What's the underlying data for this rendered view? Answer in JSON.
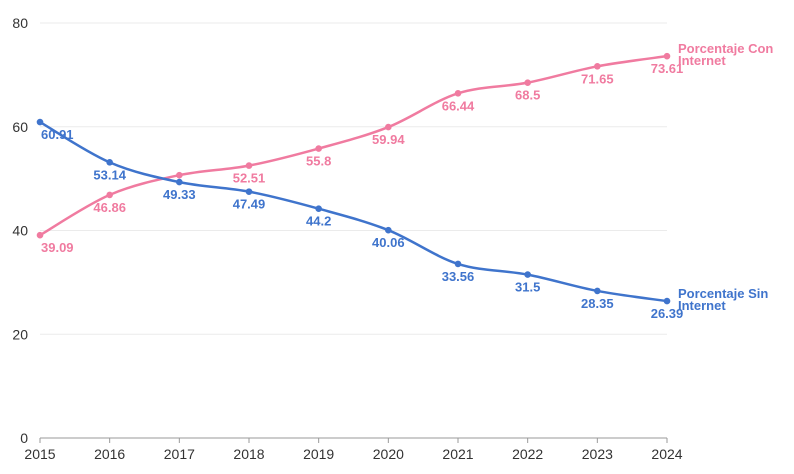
{
  "chart_data": {
    "type": "line",
    "x": [
      2015,
      2016,
      2017,
      2018,
      2019,
      2020,
      2021,
      2022,
      2023,
      2024
    ],
    "ylim": [
      0,
      80
    ],
    "yticks": [
      0,
      20,
      40,
      60,
      80
    ],
    "grid": true,
    "legend": "end-of-line labels",
    "series": [
      {
        "name": "Porcentaje Con Internet",
        "name_lines": [
          "Porcentaje Con",
          "Internet"
        ],
        "color": "#f07ba0",
        "values": [
          39.09,
          46.86,
          50.67,
          52.51,
          55.8,
          59.94,
          66.44,
          68.5,
          71.65,
          73.61
        ],
        "labels": [
          "39.09",
          "46.86",
          "",
          "52.51",
          "55.8",
          "59.94",
          "66.44",
          "68.5",
          "71.65",
          "73.61"
        ]
      },
      {
        "name": "Porcentaje Sin Internet",
        "name_lines": [
          "Porcentaje Sin",
          "Internet"
        ],
        "color": "#3f74cc",
        "values": [
          60.91,
          53.14,
          49.33,
          47.49,
          44.2,
          40.06,
          33.56,
          31.5,
          28.35,
          26.39
        ],
        "labels": [
          "60.91",
          "53.14",
          "49.33",
          "47.49",
          "44.2",
          "40.06",
          "33.56",
          "31.5",
          "28.35",
          "26.39"
        ]
      }
    ]
  }
}
